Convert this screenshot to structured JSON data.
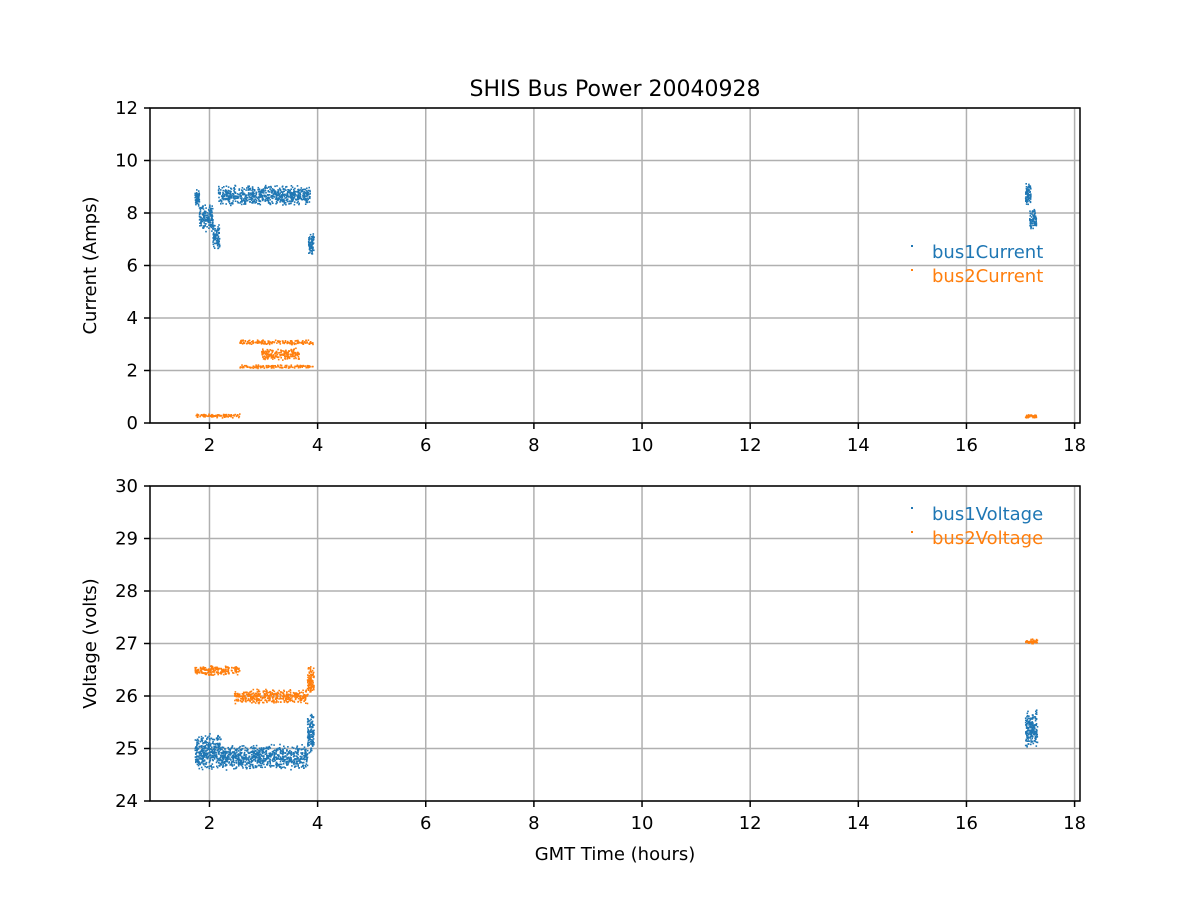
{
  "chart_data": [
    {
      "type": "scatter",
      "title": "SHIS Bus Power 20040928",
      "xlabel": "",
      "ylabel": "Current (Amps)",
      "xlim": [
        0.9,
        18.1
      ],
      "ylim": [
        0,
        12
      ],
      "xticks": [
        2,
        4,
        6,
        8,
        10,
        12,
        14,
        16,
        18
      ],
      "yticks": [
        0,
        2,
        4,
        6,
        8,
        10,
        12
      ],
      "grid": true,
      "legend_position": "right",
      "series": [
        {
          "name": "bus1Current",
          "color": "#1f77b4",
          "clusters": [
            {
              "x": [
                1.72,
                1.8
              ],
              "y": [
                8.2,
                9.0
              ]
            },
            {
              "x": [
                1.8,
                2.05
              ],
              "y": [
                7.3,
                8.4
              ]
            },
            {
              "x": [
                2.05,
                2.18
              ],
              "y": [
                6.6,
                7.6
              ]
            },
            {
              "x": [
                2.15,
                3.85
              ],
              "y": [
                8.3,
                9.1
              ]
            },
            {
              "x": [
                3.82,
                3.92
              ],
              "y": [
                6.4,
                7.3
              ]
            },
            {
              "x": [
                17.08,
                17.18
              ],
              "y": [
                8.3,
                9.2
              ]
            },
            {
              "x": [
                17.15,
                17.28
              ],
              "y": [
                7.4,
                8.2
              ]
            }
          ]
        },
        {
          "name": "bus2Current",
          "color": "#ff7f0e",
          "clusters": [
            {
              "x": [
                1.72,
                2.55
              ],
              "y": [
                0.22,
                0.38
              ]
            },
            {
              "x": [
                2.55,
                3.9
              ],
              "y": [
                3.0,
                3.2
              ]
            },
            {
              "x": [
                2.55,
                3.9
              ],
              "y": [
                2.1,
                2.25
              ]
            },
            {
              "x": [
                2.95,
                3.65
              ],
              "y": [
                2.4,
                2.9
              ]
            },
            {
              "x": [
                17.08,
                17.28
              ],
              "y": [
                0.22,
                0.35
              ]
            }
          ]
        }
      ]
    },
    {
      "type": "scatter",
      "title": "",
      "xlabel": "GMT Time (hours)",
      "ylabel": "Voltage (volts)",
      "xlim": [
        0.9,
        18.1
      ],
      "ylim": [
        24,
        30
      ],
      "xticks": [
        2,
        4,
        6,
        8,
        10,
        12,
        14,
        16,
        18
      ],
      "yticks": [
        24,
        25,
        26,
        27,
        28,
        29,
        30
      ],
      "grid": true,
      "legend_position": "top-right",
      "series": [
        {
          "name": "bus1Voltage",
          "color": "#1f77b4",
          "clusters": [
            {
              "x": [
                1.72,
                2.2
              ],
              "y": [
                24.6,
                25.3
              ]
            },
            {
              "x": [
                2.2,
                3.8
              ],
              "y": [
                24.6,
                25.1
              ]
            },
            {
              "x": [
                3.8,
                3.92
              ],
              "y": [
                24.9,
                25.7
              ]
            },
            {
              "x": [
                17.08,
                17.3
              ],
              "y": [
                25.0,
                25.8
              ]
            }
          ]
        },
        {
          "name": "bus2Voltage",
          "color": "#ff7f0e",
          "clusters": [
            {
              "x": [
                1.72,
                2.55
              ],
              "y": [
                26.4,
                26.6
              ]
            },
            {
              "x": [
                2.45,
                3.8
              ],
              "y": [
                25.85,
                26.15
              ]
            },
            {
              "x": [
                3.8,
                3.92
              ],
              "y": [
                26.0,
                26.6
              ]
            },
            {
              "x": [
                17.08,
                17.3
              ],
              "y": [
                27.0,
                27.1
              ]
            }
          ]
        }
      ]
    }
  ]
}
